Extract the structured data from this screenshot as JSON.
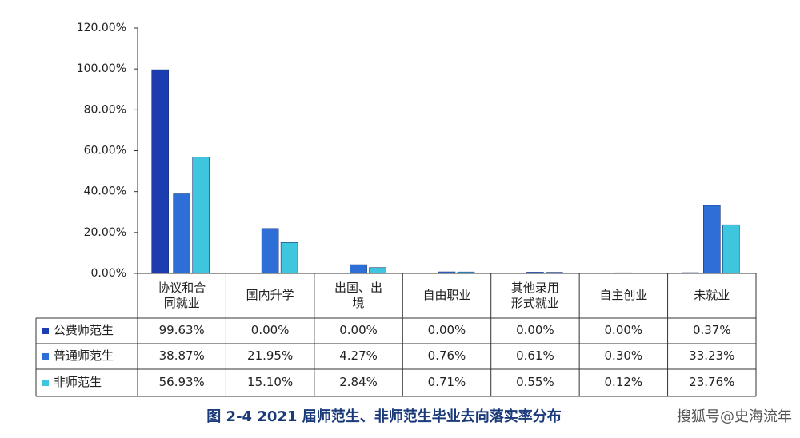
{
  "chart_data": {
    "type": "bar",
    "title": "图 2-4 2021 届师范生、非师范生毕业去向落实率分布",
    "watermark": "搜狐号@史海流年",
    "categories": [
      "协议和合同就业",
      "国内升学",
      "出国、出境",
      "自由职业",
      "其他录用形式就业",
      "自主创业",
      "未就业"
    ],
    "series": [
      {
        "name": "公费师范生",
        "color": "#1c3db0",
        "values": [
          99.63,
          0,
          0,
          0,
          0,
          0,
          0.37
        ],
        "value_labels": [
          "99.63%",
          "0.00%",
          "0.00%",
          "0.00%",
          "0.00%",
          "0.00%",
          "0.37%"
        ]
      },
      {
        "name": "普通师范生",
        "color": "#2d6fd6",
        "values": [
          38.87,
          21.95,
          4.27,
          0.76,
          0.61,
          0.3,
          33.23
        ],
        "value_labels": [
          "38.87%",
          "21.95%",
          "4.27%",
          "0.76%",
          "0.61%",
          "0.30%",
          "33.23%"
        ]
      },
      {
        "name": "非师范生",
        "color": "#3fc6df",
        "values": [
          56.93,
          15.1,
          2.84,
          0.71,
          0.55,
          0.12,
          23.76
        ],
        "value_labels": [
          "56.93%",
          "15.10%",
          "2.84%",
          "0.71%",
          "0.55%",
          "0.12%",
          "23.76%"
        ]
      }
    ],
    "ylim": [
      0,
      120
    ],
    "yticks": [
      {
        "value": 0,
        "label": "0.00%"
      },
      {
        "value": 20,
        "label": "20.00%"
      },
      {
        "value": 40,
        "label": "40.00%"
      },
      {
        "value": 60,
        "label": "60.00%"
      },
      {
        "value": 80,
        "label": "80.00%"
      },
      {
        "value": 100,
        "label": "100.00%"
      },
      {
        "value": 120,
        "label": "120.00%"
      }
    ]
  }
}
